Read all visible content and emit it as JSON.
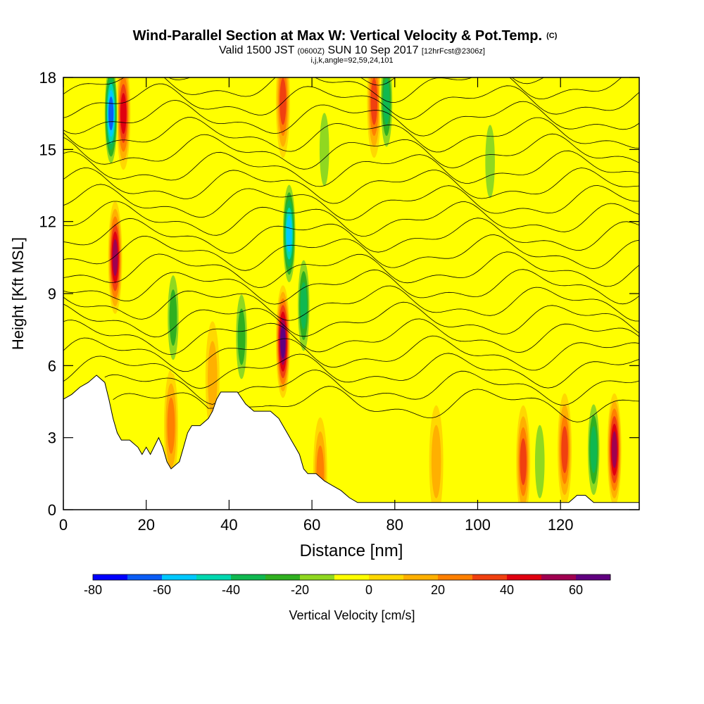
{
  "chart_data": {
    "type": "heatmap",
    "title": "Wind-Parallel Section at Max W: Vertical Velocity & Pot.Temp.",
    "title_mark": "(C)",
    "subtitle": {
      "main_a": "Valid 1500 JST ",
      "utc": "(0600Z)",
      "main_b": " SUN 10 Sep 2017 ",
      "fcst": "[12hrFcst@2306z]"
    },
    "params": "i,j,k,angle=92,59,24,101",
    "xlabel": "Distance [nm]",
    "ylabel": "Height [Kft MSL]",
    "xlim": [
      0,
      139
    ],
    "ylim": [
      0,
      18
    ],
    "x_ticks": [
      "0",
      "20",
      "40",
      "60",
      "80",
      "100",
      "120"
    ],
    "y_ticks": [
      "0",
      "3",
      "6",
      "9",
      "12",
      "15",
      "18"
    ],
    "colorbar": {
      "label": "Vertical Velocity [cm/s]",
      "min": -80,
      "max": 70,
      "step": 10,
      "tick_labels": [
        "-80",
        "-60",
        "-40",
        "-20",
        "0",
        "20",
        "40",
        "60"
      ],
      "colors": [
        "#0000ff",
        "#0a5cf5",
        "#00c8ff",
        "#00d8b0",
        "#10b850",
        "#30b020",
        "#90d820",
        "#ffff00",
        "#ffd800",
        "#ffb000",
        "#ff8000",
        "#f04010",
        "#e00010",
        "#a00050",
        "#600080"
      ]
    },
    "terrain_profile": [
      [
        0,
        4.6
      ],
      [
        2,
        4.8
      ],
      [
        4,
        5.1
      ],
      [
        6,
        5.3
      ],
      [
        8,
        5.6
      ],
      [
        10,
        5.3
      ],
      [
        11,
        4.6
      ],
      [
        12,
        3.8
      ],
      [
        13,
        3.2
      ],
      [
        14,
        2.9
      ],
      [
        16,
        2.9
      ],
      [
        18,
        2.6
      ],
      [
        19,
        2.3
      ],
      [
        20,
        2.6
      ],
      [
        21,
        2.3
      ],
      [
        23,
        3.0
      ],
      [
        24,
        2.6
      ],
      [
        25,
        2.0
      ],
      [
        26,
        1.7
      ],
      [
        28,
        2.0
      ],
      [
        29,
        2.6
      ],
      [
        30,
        3.2
      ],
      [
        31,
        3.5
      ],
      [
        33,
        3.5
      ],
      [
        35,
        3.8
      ],
      [
        36,
        4.1
      ],
      [
        37,
        4.6
      ],
      [
        38,
        4.9
      ],
      [
        40,
        4.9
      ],
      [
        42,
        4.9
      ],
      [
        44,
        4.4
      ],
      [
        46,
        4.1
      ],
      [
        48,
        4.1
      ],
      [
        50,
        4.1
      ],
      [
        52,
        3.8
      ],
      [
        53,
        3.5
      ],
      [
        54,
        3.2
      ],
      [
        55,
        2.9
      ],
      [
        56,
        2.6
      ],
      [
        57,
        2.3
      ],
      [
        58,
        1.7
      ],
      [
        59,
        1.5
      ],
      [
        61,
        1.5
      ],
      [
        63,
        1.2
      ],
      [
        65,
        1.0
      ],
      [
        67,
        0.8
      ],
      [
        69,
        0.5
      ],
      [
        71,
        0.3
      ],
      [
        73,
        0.3
      ],
      [
        75,
        0.3
      ],
      [
        77,
        0.3
      ],
      [
        79,
        0.3
      ],
      [
        81,
        0.3
      ],
      [
        83,
        0.3
      ],
      [
        85,
        0.3
      ],
      [
        90,
        0.3
      ],
      [
        95,
        0.3
      ],
      [
        100,
        0.3
      ],
      [
        105,
        0.3
      ],
      [
        110,
        0.3
      ],
      [
        115,
        0.3
      ],
      [
        120,
        0.3
      ],
      [
        122,
        0.3
      ],
      [
        124,
        0.6
      ],
      [
        126,
        0.6
      ],
      [
        128,
        0.3
      ],
      [
        130,
        0.3
      ],
      [
        135,
        0.3
      ],
      [
        139,
        0.3
      ]
    ],
    "updraft_cores": [
      {
        "x": 12.5,
        "z": 10.5,
        "w": 60
      },
      {
        "x": 14.5,
        "z": 16.5,
        "w": 45
      },
      {
        "x": 53.0,
        "z": 7.0,
        "w": 65
      },
      {
        "x": 53.0,
        "z": 17.0,
        "w": 40
      },
      {
        "x": 75.0,
        "z": 17.0,
        "w": 40
      },
      {
        "x": 26.0,
        "z": 3.5,
        "w": 30
      },
      {
        "x": 36.0,
        "z": 5.5,
        "w": 20
      },
      {
        "x": 111.0,
        "z": 2.0,
        "w": 40
      },
      {
        "x": 121.0,
        "z": 2.5,
        "w": 35
      },
      {
        "x": 133.0,
        "z": 2.5,
        "w": 60
      },
      {
        "x": 62.0,
        "z": 1.5,
        "w": 25
      },
      {
        "x": 90.0,
        "z": 2.0,
        "w": 20
      }
    ],
    "downdraft_cores": [
      {
        "x": 11.5,
        "z": 16.5,
        "w": -65
      },
      {
        "x": 54.5,
        "z": 11.5,
        "w": -55
      },
      {
        "x": 26.5,
        "z": 8.0,
        "w": -30
      },
      {
        "x": 43.0,
        "z": 7.2,
        "w": -25
      },
      {
        "x": 58.0,
        "z": 8.5,
        "w": -35
      },
      {
        "x": 78.0,
        "z": 17.0,
        "w": -35
      },
      {
        "x": 63.0,
        "z": 15.0,
        "w": -20
      },
      {
        "x": 128.0,
        "z": 2.5,
        "w": -35
      },
      {
        "x": 103.0,
        "z": 14.5,
        "w": -20
      },
      {
        "x": 115.0,
        "z": 2.0,
        "w": -20
      }
    ]
  }
}
